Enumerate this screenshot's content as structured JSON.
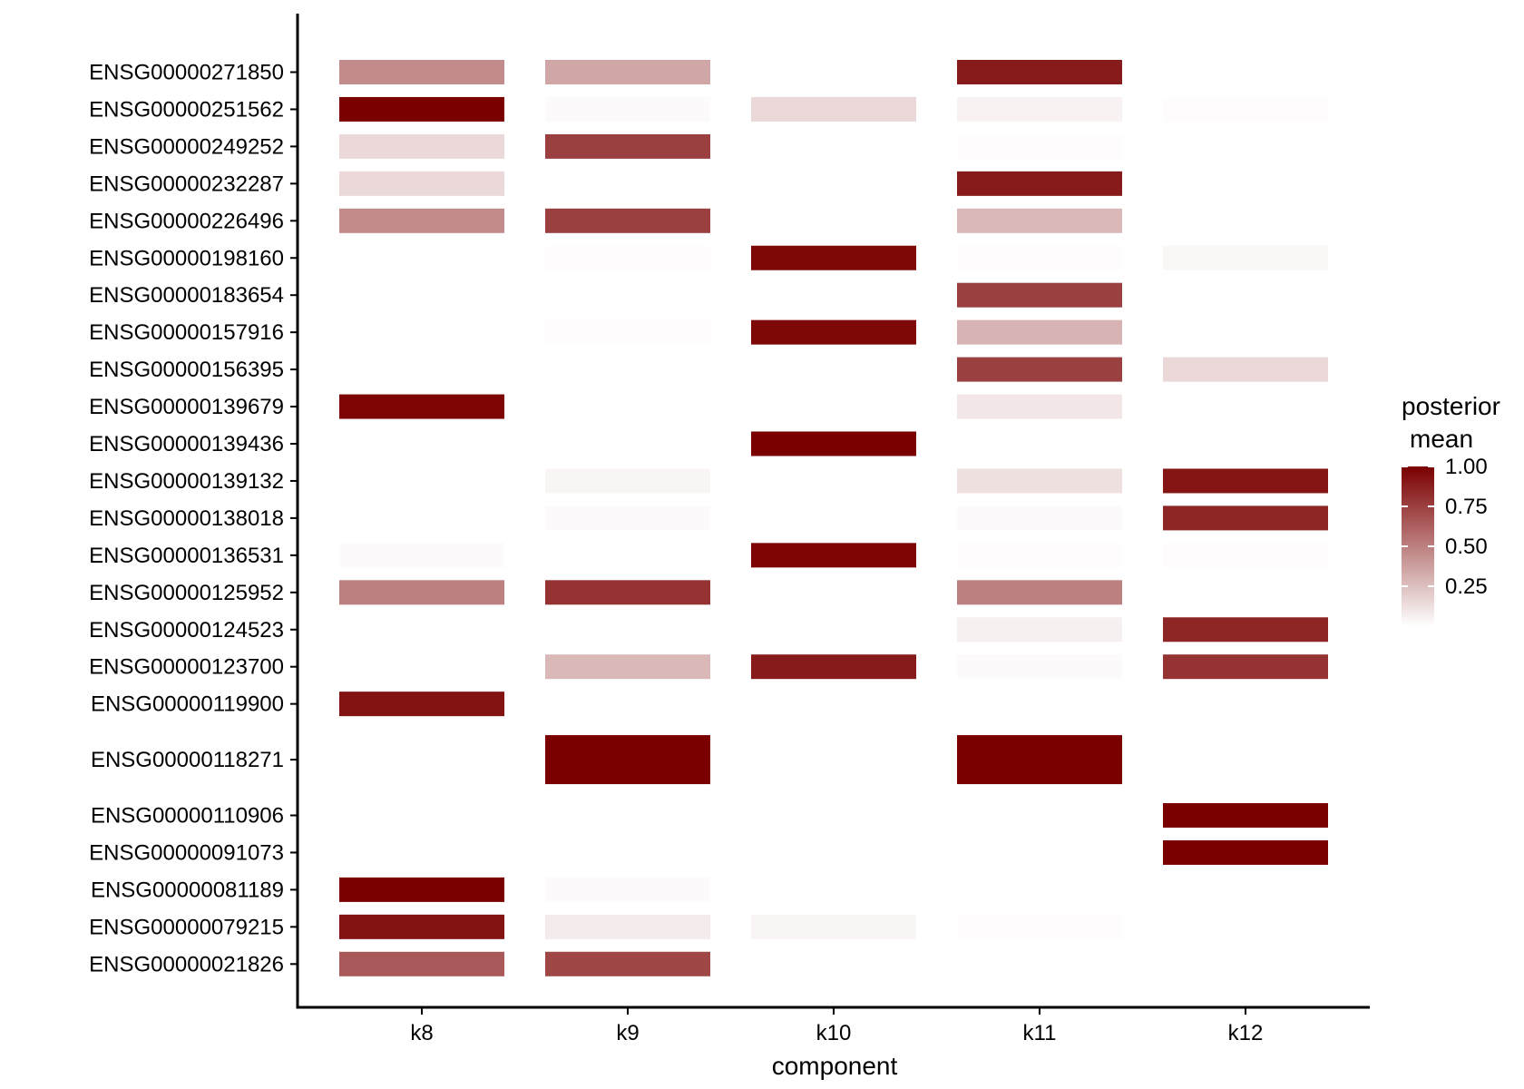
{
  "chart_data": {
    "type": "heatmap",
    "xlabel": "component",
    "ylabel": "",
    "categories_x": [
      "k8",
      "k9",
      "k10",
      "k11",
      "k12"
    ],
    "rows": [
      {
        "gene": "ENSG00000271850",
        "values": [
          0.45,
          0.35,
          0,
          0.9,
          0
        ],
        "tall": false
      },
      {
        "gene": "ENSG00000251562",
        "values": [
          1.0,
          0.02,
          0.15,
          0.05,
          0.01
        ],
        "tall": false
      },
      {
        "gene": "ENSG00000249252",
        "values": [
          0.15,
          0.75,
          0,
          0.01,
          0
        ],
        "tall": false
      },
      {
        "gene": "ENSG00000232287",
        "values": [
          0.15,
          0,
          0,
          0.9,
          0
        ],
        "tall": false
      },
      {
        "gene": "ENSG00000226496",
        "values": [
          0.45,
          0.75,
          0,
          0.28,
          0
        ],
        "tall": false
      },
      {
        "gene": "ENSG00000198160",
        "values": [
          0,
          0.01,
          0.97,
          0.01,
          0.03
        ],
        "tall": false
      },
      {
        "gene": "ENSG00000183654",
        "values": [
          0,
          0,
          0,
          0.75,
          0
        ],
        "tall": false
      },
      {
        "gene": "ENSG00000157916",
        "values": [
          0,
          0.01,
          0.97,
          0.3,
          0
        ],
        "tall": false
      },
      {
        "gene": "ENSG00000156395",
        "values": [
          0,
          0,
          0,
          0.75,
          0.15
        ],
        "tall": false
      },
      {
        "gene": "ENSG00000139679",
        "values": [
          0.98,
          0,
          0,
          0.1,
          0
        ],
        "tall": false
      },
      {
        "gene": "ENSG00000139436",
        "values": [
          0,
          0,
          1.0,
          0,
          0
        ],
        "tall": false
      },
      {
        "gene": "ENSG00000139132",
        "values": [
          0,
          0.04,
          0,
          0.12,
          0.92
        ],
        "tall": false
      },
      {
        "gene": "ENSG00000138018",
        "values": [
          0,
          0.02,
          0,
          0.02,
          0.85
        ],
        "tall": false
      },
      {
        "gene": "ENSG00000136531",
        "values": [
          0.02,
          0,
          0.98,
          0.01,
          0.01
        ],
        "tall": false
      },
      {
        "gene": "ENSG00000125952",
        "values": [
          0.5,
          0.8,
          0,
          0.5,
          0
        ],
        "tall": false
      },
      {
        "gene": "ENSG00000124523",
        "values": [
          0,
          0,
          0,
          0.06,
          0.85
        ],
        "tall": false
      },
      {
        "gene": "ENSG00000123700",
        "values": [
          0,
          0.28,
          0.9,
          0.02,
          0.8
        ],
        "tall": false
      },
      {
        "gene": "ENSG00000119900",
        "values": [
          0.93,
          0,
          0,
          0,
          0
        ],
        "tall": false
      },
      {
        "gene": "ENSG00000118271",
        "values": [
          0,
          1.0,
          0,
          1.0,
          0
        ],
        "tall": true
      },
      {
        "gene": "ENSG00000110906",
        "values": [
          0,
          0,
          0,
          0,
          1.0
        ],
        "tall": false
      },
      {
        "gene": "ENSG00000091073",
        "values": [
          0,
          0,
          0,
          0,
          1.0
        ],
        "tall": false
      },
      {
        "gene": "ENSG00000081189",
        "values": [
          1.0,
          0.02,
          0,
          0,
          0
        ],
        "tall": false
      },
      {
        "gene": "ENSG00000079215",
        "values": [
          0.93,
          0.08,
          0.04,
          0.01,
          0
        ],
        "tall": false
      },
      {
        "gene": "ENSG00000021826",
        "values": [
          0.65,
          0.72,
          0,
          0,
          0
        ],
        "tall": false
      }
    ],
    "legend": {
      "title_line1": "posterior",
      "title_line2": "mean",
      "ticks": [
        {
          "value": 1.0,
          "label": "1.00"
        },
        {
          "value": 0.75,
          "label": "0.75"
        },
        {
          "value": 0.5,
          "label": "0.50"
        },
        {
          "value": 0.25,
          "label": "0.25"
        }
      ],
      "range": [
        0,
        1
      ],
      "placement": "right"
    },
    "colors": {
      "low": "#ffffff",
      "high": "#7a0000",
      "axis": "#000000"
    }
  }
}
